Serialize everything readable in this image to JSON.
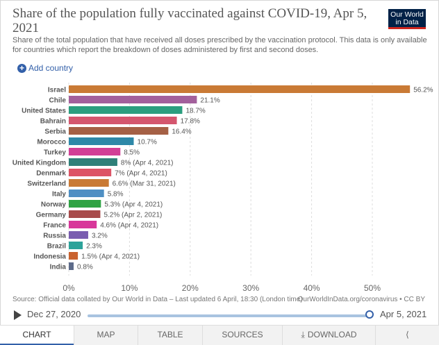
{
  "header": {
    "title": "Share of the population fully vaccinated against COVID-19, Apr 5, 2021",
    "subtitle": "Share of the total population that have received all doses prescribed by the vaccination protocol. This data is only available for countries which report the breakdown of doses administered by first and second doses.",
    "logo_line1": "Our World",
    "logo_line2": "in Data"
  },
  "controls": {
    "add_country": "Add country"
  },
  "chart_data": {
    "type": "bar",
    "orientation": "horizontal",
    "title": "Share of the population fully vaccinated against COVID-19, Apr 5, 2021",
    "categories": [
      "Israel",
      "Chile",
      "United States",
      "Bahrain",
      "Serbia",
      "Morocco",
      "Turkey",
      "United Kingdom",
      "Denmark",
      "Switzerland",
      "Italy",
      "Norway",
      "Germany",
      "France",
      "Russia",
      "Brazil",
      "Indonesia",
      "India"
    ],
    "values": [
      56.2,
      21.1,
      18.7,
      17.8,
      16.4,
      10.7,
      8.5,
      8,
      7,
      6.6,
      5.8,
      5.3,
      5.2,
      4.6,
      3.2,
      2.3,
      1.5,
      0.8
    ],
    "value_labels": [
      "56.2%",
      "21.1%",
      "18.7%",
      "17.8%",
      "16.4%",
      "10.7%",
      "8.5%",
      "8% (Apr 4, 2021)",
      "7% (Apr 4, 2021)",
      "6.6% (Mar 31, 2021)",
      "5.8%",
      "5.3% (Apr 4, 2021)",
      "5.2% (Apr 2, 2021)",
      "4.6% (Apr 4, 2021)",
      "3.2%",
      "2.3%",
      "1.5% (Apr 4, 2021)",
      "0.8%"
    ],
    "colors": [
      "#c97a35",
      "#a3609c",
      "#2b9e7f",
      "#d4566e",
      "#a56045",
      "#2e88a8",
      "#d23f96",
      "#2f8079",
      "#dd5466",
      "#c97a35",
      "#4f8fc3",
      "#2fa344",
      "#a84b4b",
      "#d8379a",
      "#7a5db0",
      "#2da39a",
      "#c9622e",
      "#5d6b8a"
    ],
    "xticks": [
      "0%",
      "10%",
      "20%",
      "30%",
      "40%",
      "50%"
    ],
    "xlim": [
      0,
      50
    ],
    "grid": true
  },
  "footer": {
    "source": "Source: Official data collated by Our World in Data – Last updated 6 April, 18:30 (London time)",
    "site": "OurWorldInData.org/coronavirus • CC BY"
  },
  "timeline": {
    "start": "Dec 27, 2020",
    "end": "Apr 5, 2021"
  },
  "tabs": [
    "CHART",
    "MAP",
    "TABLE",
    "SOURCES",
    "DOWNLOAD"
  ]
}
